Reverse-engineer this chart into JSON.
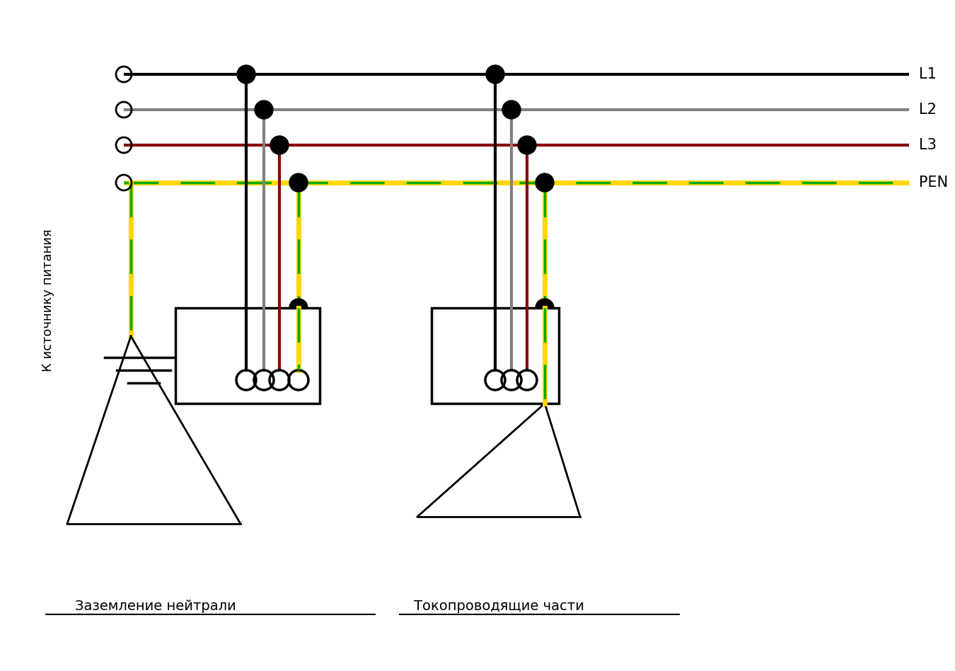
{
  "bg_color": "#ffffff",
  "figsize": [
    13.5,
    9.48
  ],
  "dpi": 100,
  "colors": {
    "L1": "#000000",
    "L2": "#808080",
    "L3": "#8B0000",
    "PEN_y": "#FFD700",
    "PEN_g": "#00AA00",
    "black": "#000000"
  },
  "labels": {
    "source": "К источнику питания",
    "neutral": "Заземление нейтрали",
    "conductive": "Токопроводящие части"
  }
}
